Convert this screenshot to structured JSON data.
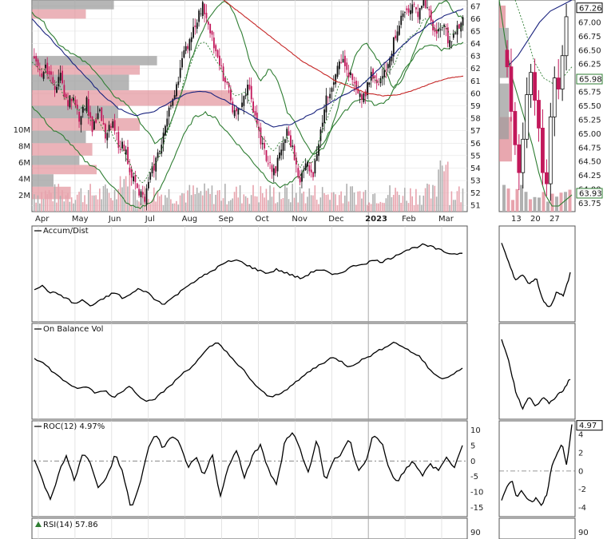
{
  "chart_data": [
    {
      "type": "candlestick",
      "panel": "price",
      "x_labels": [
        "Apr",
        "May",
        "Jun",
        "Jul",
        "Aug",
        "Sep",
        "Oct",
        "Nov",
        "Dec",
        "2023",
        "Feb",
        "Mar"
      ],
      "y_ticks": [
        51,
        52,
        53,
        54,
        55,
        56,
        57,
        58,
        59,
        60,
        61,
        62,
        63,
        64,
        65,
        66,
        67
      ],
      "ylim": [
        50.5,
        67.5
      ],
      "volume_ticks": [
        "2M",
        "4M",
        "6M",
        "8M",
        "10M"
      ],
      "close_path": [
        62.5,
        61.5,
        62.0,
        60.5,
        61.5,
        59.0,
        60.0,
        58.0,
        59.5,
        57.0,
        58.5,
        56.5,
        57.5,
        56.0,
        55.5,
        53.5,
        52.0,
        51.5,
        53.5,
        55.0,
        57.0,
        59.0,
        61.0,
        63.0,
        64.5,
        66.0,
        67.0,
        65.5,
        63.0,
        61.5,
        60.0,
        58.0,
        59.5,
        60.5,
        58.0,
        56.0,
        54.5,
        53.5,
        55.5,
        57.0,
        55.0,
        53.0,
        54.5,
        53.5,
        57.0,
        59.5,
        61.0,
        63.0,
        62.0,
        61.0,
        59.5,
        60.0,
        61.5,
        60.5,
        62.0,
        63.5,
        65.5,
        66.5,
        67.0,
        66.5,
        67.5,
        66.0,
        64.5,
        65.5,
        64.0,
        65.0,
        66.0
      ],
      "bollinger_upper": [
        66.5,
        66.0,
        65.0,
        64.0,
        63.5,
        63.0,
        62.5,
        62.0,
        61.0,
        60.0,
        59.5,
        59.0,
        58.0,
        57.0,
        56.0,
        56.5,
        58.0,
        60.0,
        62.5,
        64.5,
        66.0,
        67.0,
        67.5,
        66.5,
        64.5,
        62.0,
        61.0,
        62.0,
        61.0,
        58.5,
        57.5,
        56.0,
        55.0,
        55.5,
        57.0,
        59.5,
        61.5,
        63.5,
        64.0,
        63.0,
        62.0,
        60.5,
        61.0,
        62.5,
        64.5,
        66.0,
        67.0,
        67.5,
        66.5,
        66.0
      ],
      "bollinger_lower": [
        59.0,
        58.0,
        57.0,
        56.5,
        55.5,
        54.5,
        54.0,
        53.0,
        52.0,
        51.0,
        50.8,
        51.2,
        52.5,
        54.5,
        56.5,
        58.0,
        58.5,
        58.0,
        57.0,
        56.0,
        55.0,
        54.0,
        53.0,
        52.5,
        52.8,
        53.5,
        55.0,
        56.0,
        57.5,
        58.5,
        59.5,
        59.5,
        59.0,
        59.5,
        61.0,
        62.5,
        63.5,
        64.0,
        63.5,
        63.8,
        64.0
      ],
      "ma_red": [
        67.5,
        66.5,
        65.5,
        64.5,
        63.5,
        62.5,
        61.8,
        61.0,
        60.5,
        60.0,
        59.8,
        59.9,
        60.3,
        60.8,
        61.2,
        61.4
      ],
      "ma_blue": [
        66.0,
        64.5,
        63.0,
        61.5,
        60.0,
        58.8,
        58.2,
        58.5,
        59.3,
        60.0,
        60.2,
        59.6,
        58.8,
        58.0,
        57.3,
        57.5,
        58.2,
        59.0,
        59.8,
        60.5,
        61.8,
        63.2,
        64.5,
        65.5,
        66.3,
        66.8
      ],
      "last_price": "67.26",
      "ma_value": "65.98",
      "low_band": "63.93",
      "volume_profile": [
        {
          "color": "gray",
          "price": [
            66.0,
            67.5
          ],
          "len": 0.38
        },
        {
          "color": "red",
          "price": [
            66.0,
            67.5
          ],
          "len": 0.25
        },
        {
          "color": "gray",
          "price": [
            61.5,
            63.0
          ],
          "len": 0.58
        },
        {
          "color": "red",
          "price": [
            61.5,
            63.0
          ],
          "len": 0.5
        },
        {
          "color": "gray",
          "price": [
            59.0,
            61.5
          ],
          "len": 0.45
        },
        {
          "color": "red",
          "price": [
            59.0,
            61.5
          ],
          "len": 0.92
        },
        {
          "color": "gray",
          "price": [
            57.0,
            59.0
          ],
          "len": 0.4
        },
        {
          "color": "red",
          "price": [
            57.0,
            59.0
          ],
          "len": 0.5
        },
        {
          "color": "gray",
          "price": [
            55.0,
            57.0
          ],
          "len": 0.25
        },
        {
          "color": "red",
          "price": [
            55.0,
            57.0
          ],
          "len": 0.28
        },
        {
          "color": "gray",
          "price": [
            53.5,
            55.0
          ],
          "len": 0.22
        },
        {
          "color": "red",
          "price": [
            53.5,
            55.0
          ],
          "len": 0.3
        },
        {
          "color": "gray",
          "price": [
            51.5,
            53.5
          ],
          "len": 0.1
        },
        {
          "color": "red",
          "price": [
            51.5,
            53.5
          ],
          "len": 0.18
        }
      ]
    },
    {
      "type": "line",
      "panel": "accum_dist",
      "label": "Accum/Dist",
      "values": [
        0.35,
        0.38,
        0.3,
        0.28,
        0.22,
        0.15,
        0.2,
        0.12,
        0.18,
        0.25,
        0.3,
        0.22,
        0.28,
        0.35,
        0.3,
        0.2,
        0.15,
        0.22,
        0.3,
        0.4,
        0.45,
        0.52,
        0.58,
        0.65,
        0.7,
        0.72,
        0.68,
        0.62,
        0.58,
        0.55,
        0.6,
        0.56,
        0.52,
        0.48,
        0.54,
        0.6,
        0.58,
        0.52,
        0.56,
        0.62,
        0.66,
        0.68,
        0.72,
        0.7,
        0.74,
        0.8,
        0.85,
        0.88,
        0.92,
        0.9,
        0.86,
        0.82,
        0.8,
        0.82
      ]
    },
    {
      "type": "line",
      "panel": "obv",
      "label": "On Balance Vol",
      "values": [
        0.72,
        0.65,
        0.55,
        0.45,
        0.38,
        0.3,
        0.35,
        0.25,
        0.3,
        0.2,
        0.28,
        0.35,
        0.22,
        0.15,
        0.2,
        0.3,
        0.4,
        0.52,
        0.6,
        0.72,
        0.85,
        0.92,
        0.8,
        0.65,
        0.55,
        0.4,
        0.28,
        0.2,
        0.25,
        0.32,
        0.4,
        0.5,
        0.58,
        0.65,
        0.72,
        0.68,
        0.6,
        0.66,
        0.72,
        0.78,
        0.85,
        0.92,
        0.88,
        0.8,
        0.75,
        0.6,
        0.48,
        0.45,
        0.52,
        0.58
      ]
    },
    {
      "type": "line",
      "panel": "roc",
      "label": "ROC(12) 4.97%",
      "y_ticks": [
        -15,
        -10,
        -5,
        0,
        5,
        10
      ],
      "ylim": [
        -18,
        13
      ],
      "values": [
        0,
        -6,
        -13,
        -4,
        2,
        -7,
        3,
        -1,
        -9,
        -5,
        2,
        -4,
        -16,
        -8,
        3,
        9,
        4,
        8,
        6,
        -2,
        1,
        -5,
        3,
        -12,
        -2,
        4,
        -6,
        2,
        5,
        -3,
        -8,
        6,
        9,
        3,
        -4,
        7,
        -7,
        0,
        2,
        8,
        -3,
        -1,
        9,
        6,
        -3,
        -7,
        -2,
        0,
        -5,
        -1,
        -3,
        1,
        -2,
        5
      ]
    },
    {
      "type": "line",
      "panel": "rsi",
      "label": "RSI(14) 57.86",
      "y_ticks": [
        90
      ]
    },
    {
      "type": "candlestick",
      "panel": "zoom_price",
      "x_labels": [
        "13",
        "20",
        "27"
      ],
      "y_ticks": [
        "67.00",
        "66.75",
        "66.50",
        "66.25",
        "66.00",
        "65.75",
        "65.50",
        "65.25",
        "65.00",
        "64.75",
        "64.50",
        "64.25",
        "64.00",
        "63.75"
      ],
      "ylim": [
        63.6,
        67.4
      ],
      "close_path": [
        66.2,
        65.4,
        64.8,
        64.3,
        64.9,
        65.7,
        66.1,
        65.6,
        65.1,
        64.3,
        64.1,
        65.3,
        66.0,
        65.8,
        66.4,
        67.1
      ]
    },
    {
      "type": "line",
      "panel": "zoom_accum_dist",
      "values": [
        0.95,
        0.7,
        0.45,
        0.55,
        0.4,
        0.5,
        0.2,
        0.1,
        0.3,
        0.25,
        0.55
      ]
    },
    {
      "type": "line",
      "panel": "zoom_obv",
      "values": [
        0.95,
        0.7,
        0.3,
        0.05,
        0.22,
        0.08,
        0.2,
        0.12,
        0.22,
        0.3,
        0.45
      ]
    },
    {
      "type": "line",
      "panel": "zoom_roc",
      "label": "4.97",
      "y_ticks": [
        -4,
        -2,
        0,
        2,
        4
      ],
      "ylim": [
        -5,
        5.5
      ],
      "values": [
        -3.2,
        -1.8,
        -1.0,
        -2.8,
        -2.0,
        -3.1,
        -3.5,
        -2.9,
        -3.8,
        -2.5,
        0.5,
        2.0,
        3.0,
        0.6,
        5.0
      ]
    },
    {
      "type": "line",
      "panel": "zoom_rsi",
      "y_ticks": [
        90
      ]
    }
  ]
}
